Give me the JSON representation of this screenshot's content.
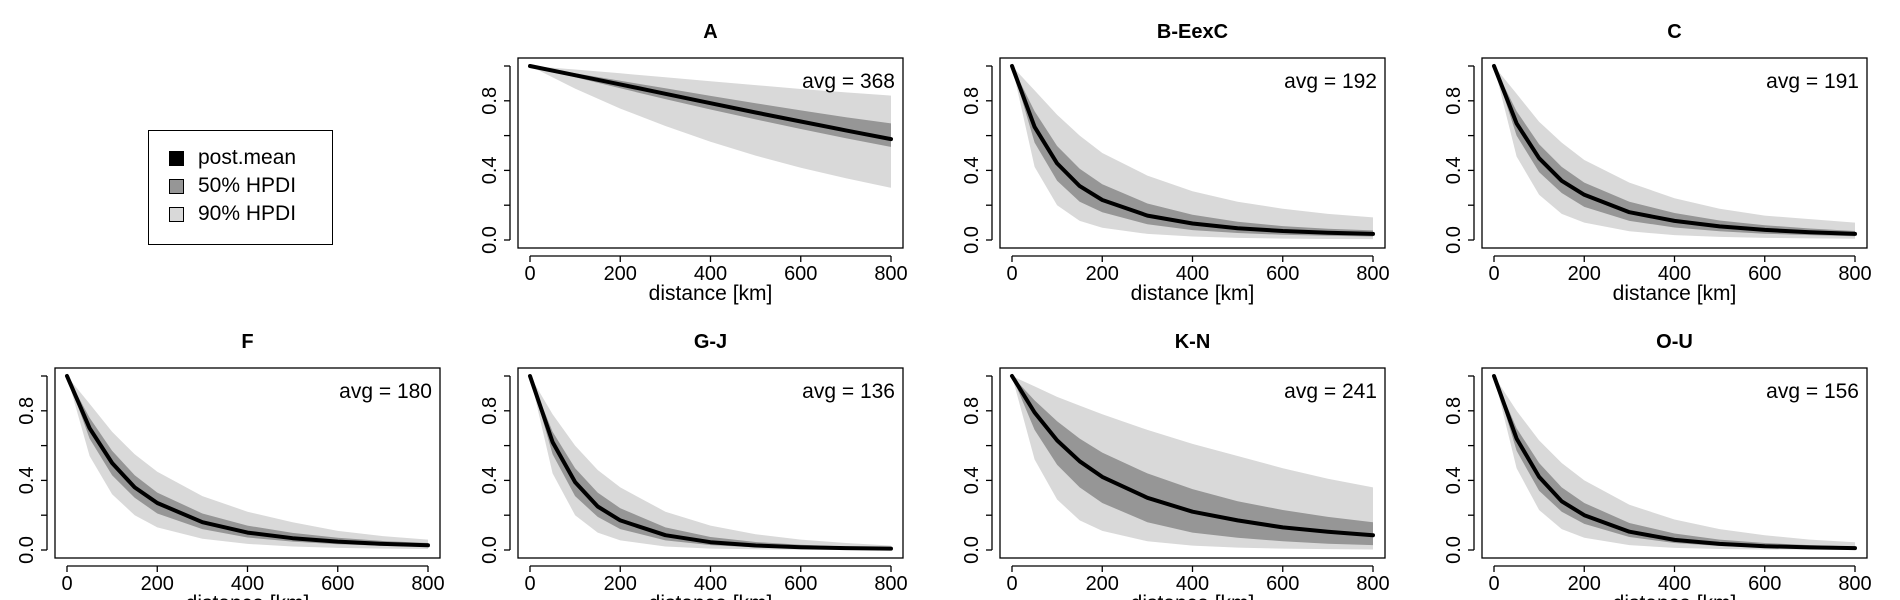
{
  "legend": {
    "items": [
      {
        "label": "post.mean",
        "color": "#000000"
      },
      {
        "label": "50% HPDI",
        "color": "#969696"
      },
      {
        "label": "90% HPDI",
        "color": "#d9d9d9"
      }
    ]
  },
  "colors": {
    "mean": "#000000",
    "hpdi50": "#969696",
    "hpdi90": "#d9d9d9"
  },
  "chart_data": [
    {
      "type": "area",
      "title": "A",
      "xlabel": "distance [km]",
      "ylabel": "",
      "annotation": "avg = 368",
      "xlim": [
        0,
        800
      ],
      "ylim": [
        0,
        1
      ],
      "xticks": [
        "0",
        "200",
        "400",
        "600",
        "800"
      ],
      "yticks": [
        "0.0",
        "0.4",
        "0.8"
      ],
      "x": [
        0,
        100,
        200,
        300,
        400,
        500,
        600,
        700,
        800
      ],
      "mean": [
        1.0,
        0.947,
        0.894,
        0.84,
        0.786,
        0.733,
        0.681,
        0.63,
        0.58
      ],
      "hpdi50": {
        "lower": [
          1.0,
          0.935,
          0.872,
          0.81,
          0.75,
          0.693,
          0.638,
          0.585,
          0.535
        ],
        "upper": [
          1.0,
          0.958,
          0.915,
          0.872,
          0.828,
          0.786,
          0.745,
          0.705,
          0.67
        ]
      },
      "hpdi90": {
        "lower": [
          1.0,
          0.87,
          0.755,
          0.655,
          0.565,
          0.485,
          0.415,
          0.355,
          0.3
        ],
        "upper": [
          1.0,
          0.98,
          0.958,
          0.935,
          0.912,
          0.89,
          0.868,
          0.848,
          0.83
        ]
      }
    },
    {
      "type": "area",
      "title": "B-EexC",
      "xlabel": "distance [km]",
      "ylabel": "",
      "annotation": "avg = 192",
      "xlim": [
        0,
        800
      ],
      "ylim": [
        0,
        1
      ],
      "xticks": [
        "0",
        "200",
        "400",
        "600",
        "800"
      ],
      "yticks": [
        "0.0",
        "0.4",
        "0.8"
      ],
      "x": [
        0,
        50,
        100,
        150,
        200,
        300,
        400,
        500,
        600,
        700,
        800
      ],
      "mean": [
        1.0,
        0.65,
        0.44,
        0.31,
        0.23,
        0.14,
        0.095,
        0.068,
        0.052,
        0.042,
        0.035
      ],
      "hpdi50": {
        "lower": [
          1.0,
          0.56,
          0.34,
          0.22,
          0.16,
          0.09,
          0.057,
          0.04,
          0.03,
          0.024,
          0.02
        ],
        "upper": [
          1.0,
          0.74,
          0.54,
          0.41,
          0.32,
          0.21,
          0.145,
          0.105,
          0.08,
          0.065,
          0.055
        ]
      },
      "hpdi90": {
        "lower": [
          1.0,
          0.42,
          0.2,
          0.11,
          0.07,
          0.035,
          0.02,
          0.012,
          0.008,
          0.006,
          0.005
        ],
        "upper": [
          1.0,
          0.86,
          0.72,
          0.6,
          0.5,
          0.37,
          0.28,
          0.22,
          0.18,
          0.15,
          0.13
        ]
      }
    },
    {
      "type": "area",
      "title": "C",
      "xlabel": "distance [km]",
      "ylabel": "",
      "annotation": "avg = 191",
      "xlim": [
        0,
        800
      ],
      "ylim": [
        0,
        1
      ],
      "xticks": [
        "0",
        "200",
        "400",
        "600",
        "800"
      ],
      "yticks": [
        "0.0",
        "0.4",
        "0.8"
      ],
      "x": [
        0,
        50,
        100,
        150,
        200,
        300,
        400,
        500,
        600,
        700,
        800
      ],
      "mean": [
        1.0,
        0.67,
        0.47,
        0.34,
        0.26,
        0.16,
        0.11,
        0.078,
        0.058,
        0.045,
        0.035
      ],
      "hpdi50": {
        "lower": [
          1.0,
          0.6,
          0.39,
          0.27,
          0.19,
          0.11,
          0.072,
          0.05,
          0.036,
          0.028,
          0.022
        ],
        "upper": [
          1.0,
          0.74,
          0.55,
          0.42,
          0.33,
          0.22,
          0.155,
          0.112,
          0.085,
          0.066,
          0.052
        ]
      },
      "hpdi90": {
        "lower": [
          1.0,
          0.48,
          0.26,
          0.15,
          0.1,
          0.05,
          0.028,
          0.018,
          0.012,
          0.009,
          0.007
        ],
        "upper": [
          1.0,
          0.84,
          0.68,
          0.56,
          0.46,
          0.33,
          0.24,
          0.18,
          0.14,
          0.12,
          0.1
        ]
      }
    },
    {
      "type": "area",
      "title": "F",
      "xlabel": "distance [km]",
      "ylabel": "",
      "annotation": "avg = 180",
      "xlim": [
        0,
        800
      ],
      "ylim": [
        0,
        1
      ],
      "xticks": [
        "0",
        "200",
        "400",
        "600",
        "800"
      ],
      "yticks": [
        "0.0",
        "0.4",
        "0.8"
      ],
      "x": [
        0,
        50,
        100,
        150,
        200,
        300,
        400,
        500,
        600,
        700,
        800
      ],
      "mean": [
        1.0,
        0.7,
        0.5,
        0.36,
        0.27,
        0.16,
        0.1,
        0.068,
        0.048,
        0.035,
        0.027
      ],
      "hpdi50": {
        "lower": [
          1.0,
          0.64,
          0.43,
          0.3,
          0.21,
          0.12,
          0.072,
          0.048,
          0.033,
          0.024,
          0.018
        ],
        "upper": [
          1.0,
          0.76,
          0.57,
          0.43,
          0.33,
          0.21,
          0.14,
          0.098,
          0.07,
          0.052,
          0.04
        ]
      },
      "hpdi90": {
        "lower": [
          1.0,
          0.54,
          0.32,
          0.2,
          0.13,
          0.065,
          0.035,
          0.02,
          0.012,
          0.008,
          0.006
        ],
        "upper": [
          1.0,
          0.84,
          0.68,
          0.55,
          0.45,
          0.31,
          0.22,
          0.16,
          0.11,
          0.08,
          0.06
        ]
      }
    },
    {
      "type": "area",
      "title": "G-J",
      "xlabel": "distance [km]",
      "ylabel": "",
      "annotation": "avg = 136",
      "xlim": [
        0,
        800
      ],
      "ylim": [
        0,
        1
      ],
      "xticks": [
        "0",
        "200",
        "400",
        "600",
        "800"
      ],
      "yticks": [
        "0.0",
        "0.4",
        "0.8"
      ],
      "x": [
        0,
        50,
        100,
        150,
        200,
        300,
        400,
        500,
        600,
        700,
        800
      ],
      "mean": [
        1.0,
        0.62,
        0.39,
        0.25,
        0.17,
        0.085,
        0.045,
        0.026,
        0.016,
        0.011,
        0.008
      ],
      "hpdi50": {
        "lower": [
          1.0,
          0.55,
          0.31,
          0.19,
          0.12,
          0.055,
          0.028,
          0.015,
          0.009,
          0.006,
          0.004
        ],
        "upper": [
          1.0,
          0.68,
          0.47,
          0.33,
          0.24,
          0.13,
          0.075,
          0.046,
          0.03,
          0.02,
          0.014
        ]
      },
      "hpdi90": {
        "lower": [
          1.0,
          0.44,
          0.2,
          0.1,
          0.055,
          0.02,
          0.008,
          0.004,
          0.002,
          0.001,
          0.001
        ],
        "upper": [
          1.0,
          0.78,
          0.6,
          0.46,
          0.36,
          0.22,
          0.14,
          0.09,
          0.06,
          0.04,
          0.025
        ]
      }
    },
    {
      "type": "area",
      "title": "K-N",
      "xlabel": "distance [km]",
      "ylabel": "",
      "annotation": "avg = 241",
      "xlim": [
        0,
        800
      ],
      "ylim": [
        0,
        1
      ],
      "xticks": [
        "0",
        "200",
        "400",
        "600",
        "800"
      ],
      "yticks": [
        "0.0",
        "0.4",
        "0.8"
      ],
      "x": [
        0,
        50,
        100,
        150,
        200,
        300,
        400,
        500,
        600,
        700,
        800
      ],
      "mean": [
        1.0,
        0.79,
        0.63,
        0.51,
        0.42,
        0.3,
        0.22,
        0.17,
        0.13,
        0.105,
        0.085
      ],
      "hpdi50": {
        "lower": [
          1.0,
          0.69,
          0.49,
          0.36,
          0.27,
          0.16,
          0.1,
          0.07,
          0.05,
          0.036,
          0.028
        ],
        "upper": [
          1.0,
          0.86,
          0.74,
          0.64,
          0.56,
          0.44,
          0.35,
          0.28,
          0.23,
          0.19,
          0.16
        ]
      },
      "hpdi90": {
        "lower": [
          1.0,
          0.52,
          0.29,
          0.17,
          0.11,
          0.05,
          0.025,
          0.014,
          0.008,
          0.005,
          0.003
        ],
        "upper": [
          1.0,
          0.94,
          0.88,
          0.83,
          0.78,
          0.69,
          0.61,
          0.54,
          0.47,
          0.41,
          0.36
        ]
      }
    },
    {
      "type": "area",
      "title": "O-U",
      "xlabel": "distance [km]",
      "ylabel": "",
      "annotation": "avg = 156",
      "xlim": [
        0,
        800
      ],
      "ylim": [
        0,
        1
      ],
      "xticks": [
        "0",
        "200",
        "400",
        "600",
        "800"
      ],
      "yticks": [
        "0.0",
        "0.4",
        "0.8"
      ],
      "x": [
        0,
        50,
        100,
        150,
        200,
        300,
        400,
        500,
        600,
        700,
        800
      ],
      "mean": [
        1.0,
        0.64,
        0.42,
        0.28,
        0.2,
        0.105,
        0.058,
        0.035,
        0.022,
        0.015,
        0.011
      ],
      "hpdi50": {
        "lower": [
          1.0,
          0.57,
          0.34,
          0.22,
          0.15,
          0.075,
          0.04,
          0.023,
          0.014,
          0.009,
          0.006
        ],
        "upper": [
          1.0,
          0.7,
          0.5,
          0.36,
          0.27,
          0.155,
          0.095,
          0.06,
          0.04,
          0.028,
          0.02
        ]
      },
      "hpdi90": {
        "lower": [
          1.0,
          0.47,
          0.23,
          0.12,
          0.07,
          0.028,
          0.012,
          0.006,
          0.003,
          0.002,
          0.001
        ],
        "upper": [
          1.0,
          0.8,
          0.63,
          0.5,
          0.4,
          0.26,
          0.175,
          0.12,
          0.085,
          0.06,
          0.045
        ]
      }
    }
  ]
}
